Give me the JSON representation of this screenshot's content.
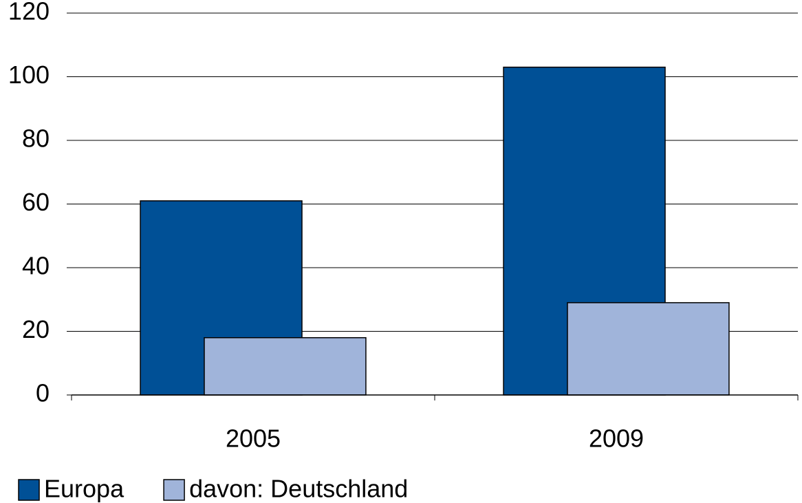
{
  "chart_data": {
    "type": "bar",
    "categories": [
      "2005",
      "2009"
    ],
    "series": [
      {
        "name": "Europa",
        "color": "#005096",
        "values": [
          61,
          103
        ]
      },
      {
        "name": "davon: Deutschland",
        "color": "#a0b4da",
        "values": [
          18,
          29
        ]
      }
    ],
    "ylim": [
      0,
      120
    ],
    "yticks": [
      0,
      20,
      40,
      60,
      80,
      100,
      120
    ],
    "grid": true,
    "legend": "bottom"
  }
}
